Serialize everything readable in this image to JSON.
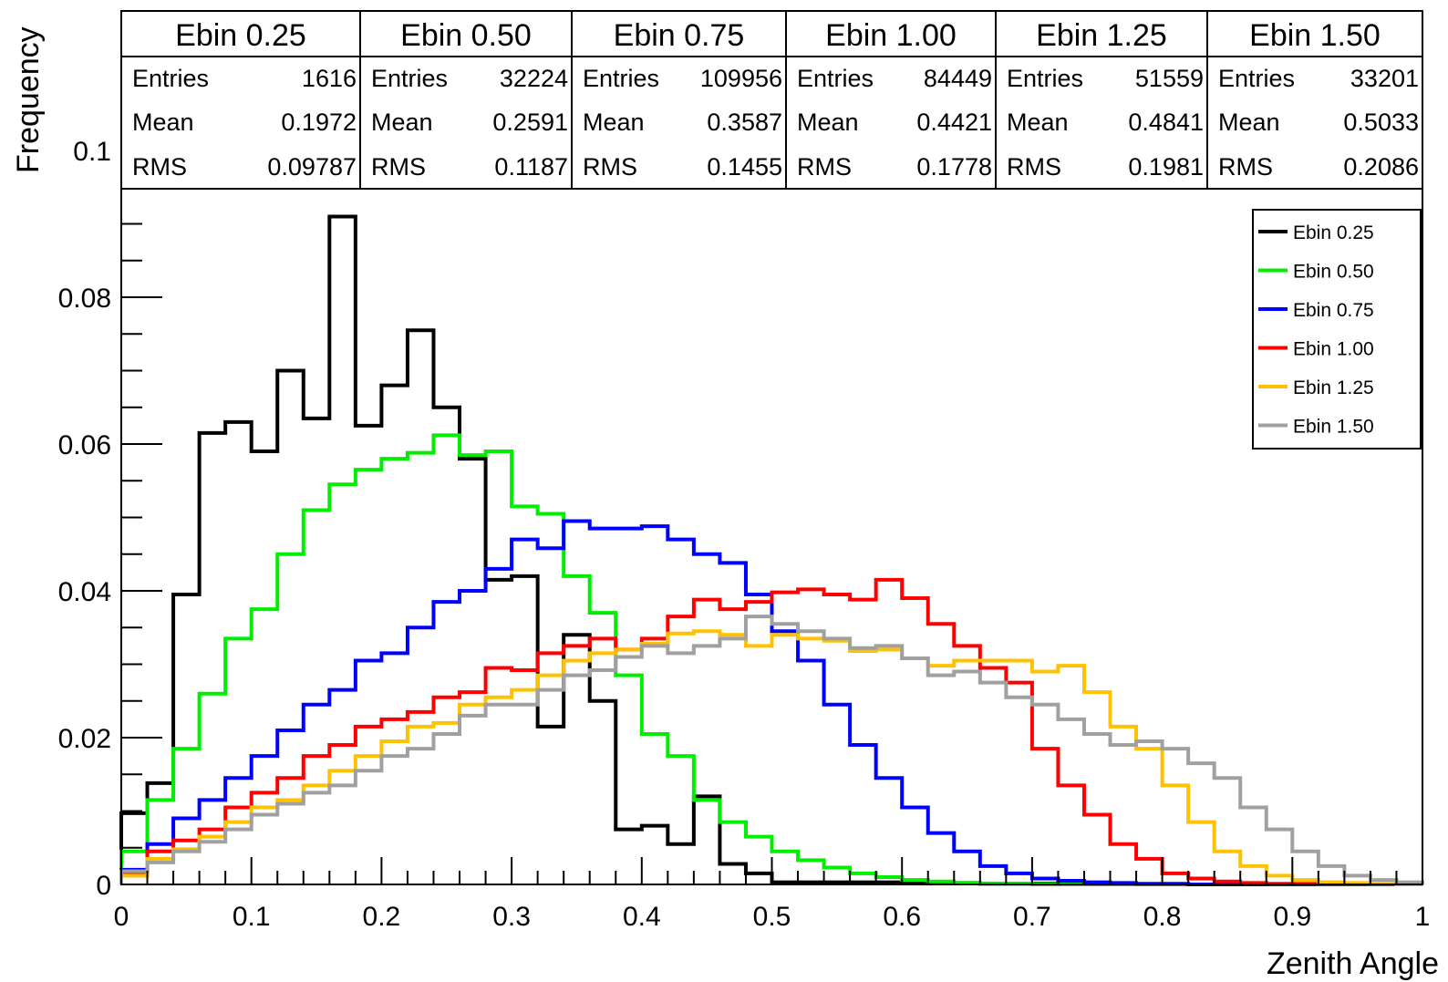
{
  "chart_data": {
    "type": "line",
    "xlabel": "Zenith Angle",
    "ylabel": "Frequency",
    "xlim": [
      0,
      1
    ],
    "ylim": [
      0,
      0.1
    ],
    "x_ticks": [
      "0",
      "0.1",
      "0.2",
      "0.3",
      "0.4",
      "0.5",
      "0.6",
      "0.7",
      "0.8",
      "0.9",
      "1"
    ],
    "y_ticks": [
      "0",
      "0.02",
      "0.04",
      "0.06",
      "0.08",
      "0.1"
    ],
    "legend_position": "top-right",
    "bin_width": 0.02,
    "series": [
      {
        "name": "Ebin 0.25",
        "color": "#000000",
        "stats": {
          "entries": "1616",
          "mean": "0.1972",
          "rms": "0.09787"
        },
        "values": [
          0.0097,
          0.0138,
          0.0395,
          0.0615,
          0.063,
          0.059,
          0.07,
          0.0635,
          0.091,
          0.0625,
          0.068,
          0.0755,
          0.065,
          0.058,
          0.0415,
          0.042,
          0.0215,
          0.034,
          0.025,
          0.0075,
          0.008,
          0.0055,
          0.012,
          0.0028,
          0.0015,
          0.0003,
          0.0003,
          0.0003,
          0.0003,
          0.0003,
          0.0003,
          0.0002,
          0.0002,
          0.0001,
          0.0001,
          0.0001,
          0.0001,
          0,
          0,
          0,
          0,
          0,
          0,
          0,
          0,
          0,
          0,
          0,
          0,
          0
        ]
      },
      {
        "name": "Ebin 0.50",
        "color": "#00ee00",
        "stats": {
          "entries": "32224",
          "mean": "0.2591",
          "rms": "0.1187"
        },
        "values": [
          0.0045,
          0.0115,
          0.0185,
          0.026,
          0.0335,
          0.0375,
          0.045,
          0.051,
          0.0545,
          0.0565,
          0.058,
          0.0588,
          0.0612,
          0.0585,
          0.059,
          0.0515,
          0.0505,
          0.042,
          0.037,
          0.0285,
          0.0205,
          0.0175,
          0.0115,
          0.0085,
          0.0065,
          0.0045,
          0.0033,
          0.0023,
          0.0015,
          0.001,
          0.0006,
          0.0004,
          0.0002,
          0.0001,
          0.0001,
          0,
          0,
          0,
          0,
          0,
          0,
          0,
          0,
          0,
          0,
          0,
          0,
          0,
          0,
          0
        ]
      },
      {
        "name": "Ebin 0.75",
        "color": "#0000ff",
        "stats": {
          "entries": "109956",
          "mean": "0.3587",
          "rms": "0.1455"
        },
        "values": [
          0.002,
          0.0055,
          0.009,
          0.0115,
          0.0145,
          0.0175,
          0.021,
          0.0245,
          0.0265,
          0.0305,
          0.0315,
          0.035,
          0.0385,
          0.04,
          0.043,
          0.047,
          0.0458,
          0.0495,
          0.0485,
          0.0485,
          0.0488,
          0.047,
          0.045,
          0.0438,
          0.0395,
          0.0345,
          0.0305,
          0.0245,
          0.019,
          0.0145,
          0.0105,
          0.007,
          0.0045,
          0.0025,
          0.0015,
          0.0008,
          0.0005,
          0.0003,
          0.0002,
          0.0001,
          0.0001,
          0,
          0,
          0,
          0,
          0,
          0,
          0,
          0,
          0
        ]
      },
      {
        "name": "Ebin 1.00",
        "color": "#ff0000",
        "stats": {
          "entries": "84449",
          "mean": "0.4421",
          "rms": "0.1778"
        },
        "values": [
          0.0015,
          0.0045,
          0.006,
          0.0075,
          0.0105,
          0.0125,
          0.0145,
          0.0175,
          0.019,
          0.0215,
          0.0225,
          0.0235,
          0.0255,
          0.0262,
          0.0295,
          0.0292,
          0.0315,
          0.0325,
          0.0335,
          0.032,
          0.0335,
          0.0365,
          0.0388,
          0.0375,
          0.0385,
          0.0398,
          0.0402,
          0.0395,
          0.0388,
          0.0415,
          0.039,
          0.0355,
          0.0325,
          0.0295,
          0.0275,
          0.0185,
          0.0135,
          0.0095,
          0.0055,
          0.0035,
          0.0015,
          0.0008,
          0.0004,
          0.0002,
          0.0001,
          0.0001,
          0,
          0,
          0,
          0
        ]
      },
      {
        "name": "Ebin 1.25",
        "color": "#ffc200",
        "stats": {
          "entries": "51559",
          "mean": "0.4841",
          "rms": "0.1981"
        },
        "values": [
          0.0012,
          0.0035,
          0.0048,
          0.0065,
          0.0085,
          0.0105,
          0.0115,
          0.0135,
          0.0155,
          0.0175,
          0.0195,
          0.0215,
          0.022,
          0.0245,
          0.0255,
          0.0265,
          0.0285,
          0.0305,
          0.0315,
          0.032,
          0.0328,
          0.0342,
          0.0345,
          0.034,
          0.0325,
          0.034,
          0.0335,
          0.0332,
          0.0318,
          0.032,
          0.0308,
          0.0298,
          0.0305,
          0.0305,
          0.0305,
          0.029,
          0.0298,
          0.0262,
          0.0215,
          0.0185,
          0.0135,
          0.0085,
          0.0045,
          0.0025,
          0.0012,
          0.0006,
          0.0003,
          0.0002,
          0.0001,
          0
        ]
      },
      {
        "name": "Ebin 1.50",
        "color": "#a0a0a0",
        "stats": {
          "entries": "33201",
          "mean": "0.5033",
          "rms": "0.2086"
        },
        "values": [
          0.0018,
          0.003,
          0.0045,
          0.0058,
          0.0075,
          0.0095,
          0.011,
          0.0125,
          0.0135,
          0.0155,
          0.0175,
          0.0185,
          0.0205,
          0.023,
          0.0245,
          0.0245,
          0.0265,
          0.0285,
          0.0292,
          0.031,
          0.0325,
          0.0315,
          0.0325,
          0.0335,
          0.0365,
          0.0355,
          0.0345,
          0.0335,
          0.0322,
          0.0325,
          0.0308,
          0.0285,
          0.029,
          0.0275,
          0.0255,
          0.0245,
          0.0225,
          0.0205,
          0.019,
          0.0195,
          0.0185,
          0.0165,
          0.0145,
          0.0105,
          0.0075,
          0.0045,
          0.0025,
          0.0012,
          0.0006,
          0.0003
        ]
      }
    ]
  },
  "stats_labels": {
    "entries": "Entries",
    "mean": "Mean",
    "rms": "RMS"
  }
}
